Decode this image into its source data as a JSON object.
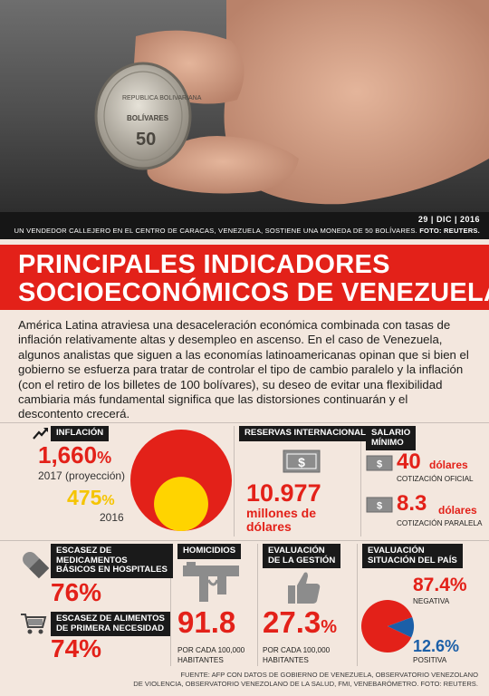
{
  "photo": {
    "coin_top": "REPUBLICA BOLIVARIANA",
    "coin_mid": "BOLÍVARES",
    "coin_value": "50"
  },
  "caption": {
    "date": "29 | DIC | 2016",
    "text": "UN VENDEDOR CALLEJERO EN EL CENTRO DE CARACAS, VENEZUELA, SOSTIENE UNA MONEDA DE 50 BOLÍVARES.",
    "credit": "FOTO: REUTERS."
  },
  "title": {
    "line1": "PRINCIPALES INDICADORES",
    "line2": "SOCIOECONÓMICOS DE VENEZUELA"
  },
  "intro": "América Latina atraviesa una desaceleración económica combinada con tasas de inflación relativamente altas y desempleo en ascenso. En el caso de Venezuela, algunos analistas que siguen a las economías latinoamericanas opinan que si bien el gobierno se esfuerza para tratar de controlar el tipo de cambio paralelo y la inflación (con el retiro de los billetes de 100 bolívares), su deseo de evitar una flexibilidad cambiaria más fundamental significa que las distorsiones continuarán y el descontento crecerá.",
  "inflation": {
    "label": "INFLACIÓN",
    "value_2017": "1,660",
    "pct": "%",
    "label_2017": "2017 (proyección)",
    "value_2016": "475",
    "label_2016": "2016",
    "v2017_num": 1660,
    "v2016_num": 475,
    "color_2017": "#e32119",
    "color_2016": "#ffd400"
  },
  "reserves": {
    "label": "RESERVAS INTERNACIONALES",
    "value": "10.977",
    "unit_line1": "millones de",
    "unit_line2": "dólares",
    "icon": "dollar-bill-icon"
  },
  "salary": {
    "label_line1": "SALARIO",
    "label_line2": "MÍNIMO",
    "official_value": "40",
    "official_unit": "dólares",
    "official_label": "COTIZACIÓN OFICIAL",
    "parallel_value": "8.3",
    "parallel_unit": "dólares",
    "parallel_label": "COTIZACIÓN PARALELA"
  },
  "medicine": {
    "label_line1": "ESCASEZ DE",
    "label_line2": "MEDICAMENTOS",
    "label_line3": "BÁSICOS EN HOSPITALES",
    "value": "76%",
    "icon": "pill-icon"
  },
  "food": {
    "label_line1": "ESCASEZ DE ALIMENTOS",
    "label_line2": "DE PRIMERA NECESIDAD",
    "value": "74%",
    "icon": "shopping-cart-icon"
  },
  "homicides": {
    "label": "HOMICIDIOS",
    "value": "91.8",
    "note_line1": "POR CADA 100,000",
    "note_line2": "HABITANTES",
    "icon": "gun-icon"
  },
  "management": {
    "label_line1": "EVALUACIÓN",
    "label_line2": "DE LA GESTIÓN",
    "value": "27.3",
    "pct": "%",
    "note_line1": "POR CADA 100,000",
    "note_line2": "HABITANTES",
    "icon": "thumbs-up-icon"
  },
  "country": {
    "label_line1": "EVALUACIÓN",
    "label_line2": "SITUACIÓN DEL PAÍS",
    "negative_value": "87.4%",
    "negative_label": "NEGATIVA",
    "positive_value": "12.6%",
    "positive_label": "POSITIVA",
    "negative_num": 87.4,
    "positive_num": 12.6,
    "color_negative": "#e32119",
    "color_positive": "#1b5fa8"
  },
  "footer": {
    "line1": "FUENTE: AFP CON DATOS DE GOBIERNO DE VENEZUELA, OBSERVATORIO VENEZOLANO",
    "line2": "DE VIOLENCIA, OBSERVATORIO VENEZOLANO DE LA SALUD, FMI, VENEBARÓMETRO. FOTO: REUTERS."
  }
}
